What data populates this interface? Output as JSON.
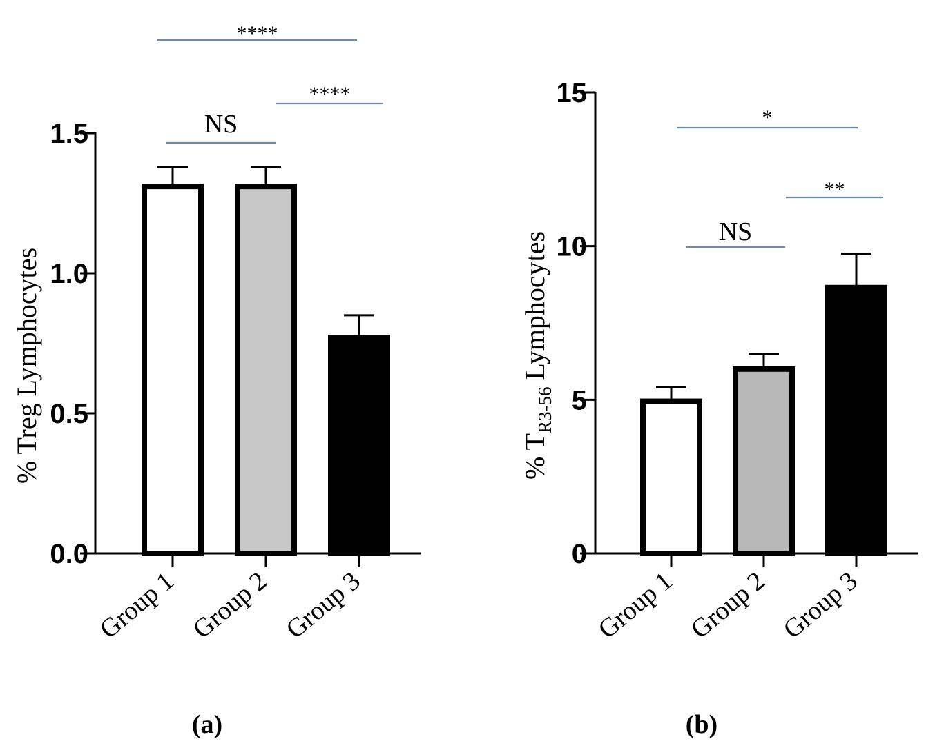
{
  "chart_data": [
    {
      "id": "a",
      "type": "bar",
      "panel_label": "(a)",
      "categories": [
        "Group 1",
        "Group 2",
        "Group 3"
      ],
      "values": [
        1.31,
        1.31,
        0.77
      ],
      "errors": [
        0.07,
        0.07,
        0.08
      ],
      "bar_colors": [
        "#ffffff",
        "#c8c8c8",
        "#000000"
      ],
      "ylabel": "% Treg Lymphocytes",
      "ylabel_parts": {
        "pre": "% Treg Lymphocytes",
        "sub": "",
        "post": ""
      },
      "ylim": [
        0,
        1.5
      ],
      "yticks": [
        0,
        0.5,
        1.0,
        1.5
      ],
      "ytick_labels": [
        "0.0",
        "0.5",
        "1.0",
        "1.5"
      ],
      "significance": [
        {
          "from": 0,
          "to": 1,
          "label": "NS"
        },
        {
          "from": 1,
          "to": 2,
          "label": "****"
        },
        {
          "from": 0,
          "to": 2,
          "label": "****"
        }
      ]
    },
    {
      "id": "b",
      "type": "bar",
      "panel_label": "(b)",
      "categories": [
        "Group 1",
        "Group 2",
        "Group 3"
      ],
      "values": [
        4.95,
        6.0,
        8.65
      ],
      "errors": [
        0.45,
        0.5,
        1.1
      ],
      "bar_colors": [
        "#ffffff",
        "#b8b8b8",
        "#000000"
      ],
      "ylabel": "% TR3-56 Lymphocytes",
      "ylabel_parts": {
        "pre": "% T",
        "sub": "R3-56",
        "post": " Lymphocytes"
      },
      "ylim": [
        0,
        15
      ],
      "yticks": [
        0,
        5,
        10,
        15
      ],
      "ytick_labels": [
        "0",
        "5",
        "10",
        "15"
      ],
      "significance": [
        {
          "from": 0,
          "to": 1,
          "label": "NS"
        },
        {
          "from": 1,
          "to": 2,
          "label": "**"
        },
        {
          "from": 0,
          "to": 2,
          "label": "*"
        }
      ]
    }
  ],
  "colors": {
    "axis": "#000000",
    "bracket": "#6a8ca6"
  }
}
